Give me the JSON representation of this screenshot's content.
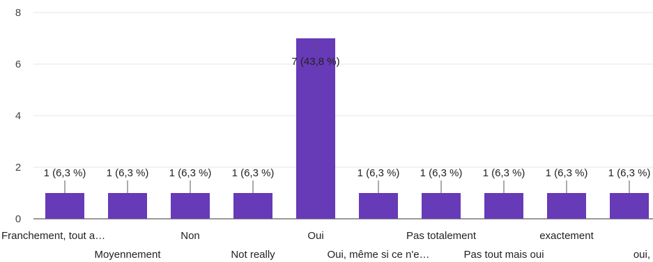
{
  "chart_data": {
    "type": "bar",
    "categories": [
      "Franchement, tout a…",
      "Moyennement",
      "Non",
      "Not really",
      "Oui",
      "Oui, même si ce n'e…",
      "Pas totalement",
      "Pas tout mais oui",
      "exactement",
      "oui,"
    ],
    "values": [
      1,
      1,
      1,
      1,
      7,
      1,
      1,
      1,
      1,
      1
    ],
    "data_labels": [
      "1 (6,3 %)",
      "1 (6,3 %)",
      "1 (6,3 %)",
      "1 (6,3 %)",
      "7 (43,8 %)",
      "1 (6,3 %)",
      "1 (6,3 %)",
      "1 (6,3 %)",
      "1 (6,3 %)",
      "1 (6,3 %)"
    ],
    "ylim": [
      0,
      8
    ],
    "yticks": [
      0,
      2,
      4,
      6,
      8
    ],
    "grid": true,
    "bar_color": "#673ab7"
  }
}
